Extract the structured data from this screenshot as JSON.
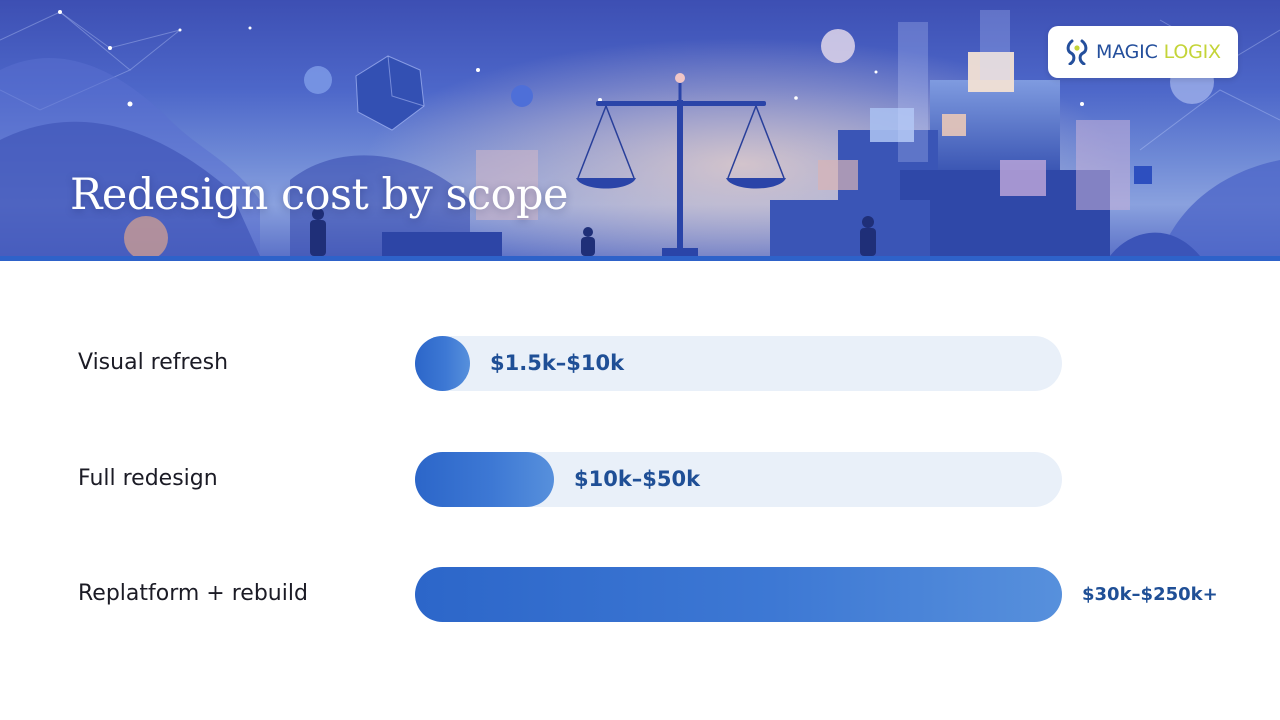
{
  "header": {
    "title": "Redesign cost by scope",
    "brand": {
      "part1": "MAGIC",
      "part2": "LOGIX"
    }
  },
  "colors": {
    "bar_gradient_start": "#2c66c9",
    "bar_gradient_end": "#5790dc",
    "track": "#e9f0f9",
    "value_text": "#1f4f96",
    "label_text": "#1b1b25",
    "brand_blue": "#244f9c",
    "brand_lime": "#c4d438"
  },
  "icons": {
    "banner_scene": "scales-of-justice-illustration-icon",
    "brand_mark": "magic-logix-logo-icon"
  },
  "chart_data": {
    "type": "bar",
    "orientation": "horizontal",
    "title": "Redesign cost by scope",
    "categories": [
      "Visual refresh",
      "Full redesign",
      "Replatform + rebuild"
    ],
    "value_labels": [
      "$1.5k–$10k",
      "$10k–$50k",
      "$30k–$250k+"
    ],
    "ranges_usd_thousands": [
      [
        1.5,
        10
      ],
      [
        10,
        50
      ],
      [
        30,
        250
      ]
    ],
    "relative_fill": [
      0.085,
      0.215,
      1.0
    ],
    "grid": false,
    "legend": "none"
  }
}
